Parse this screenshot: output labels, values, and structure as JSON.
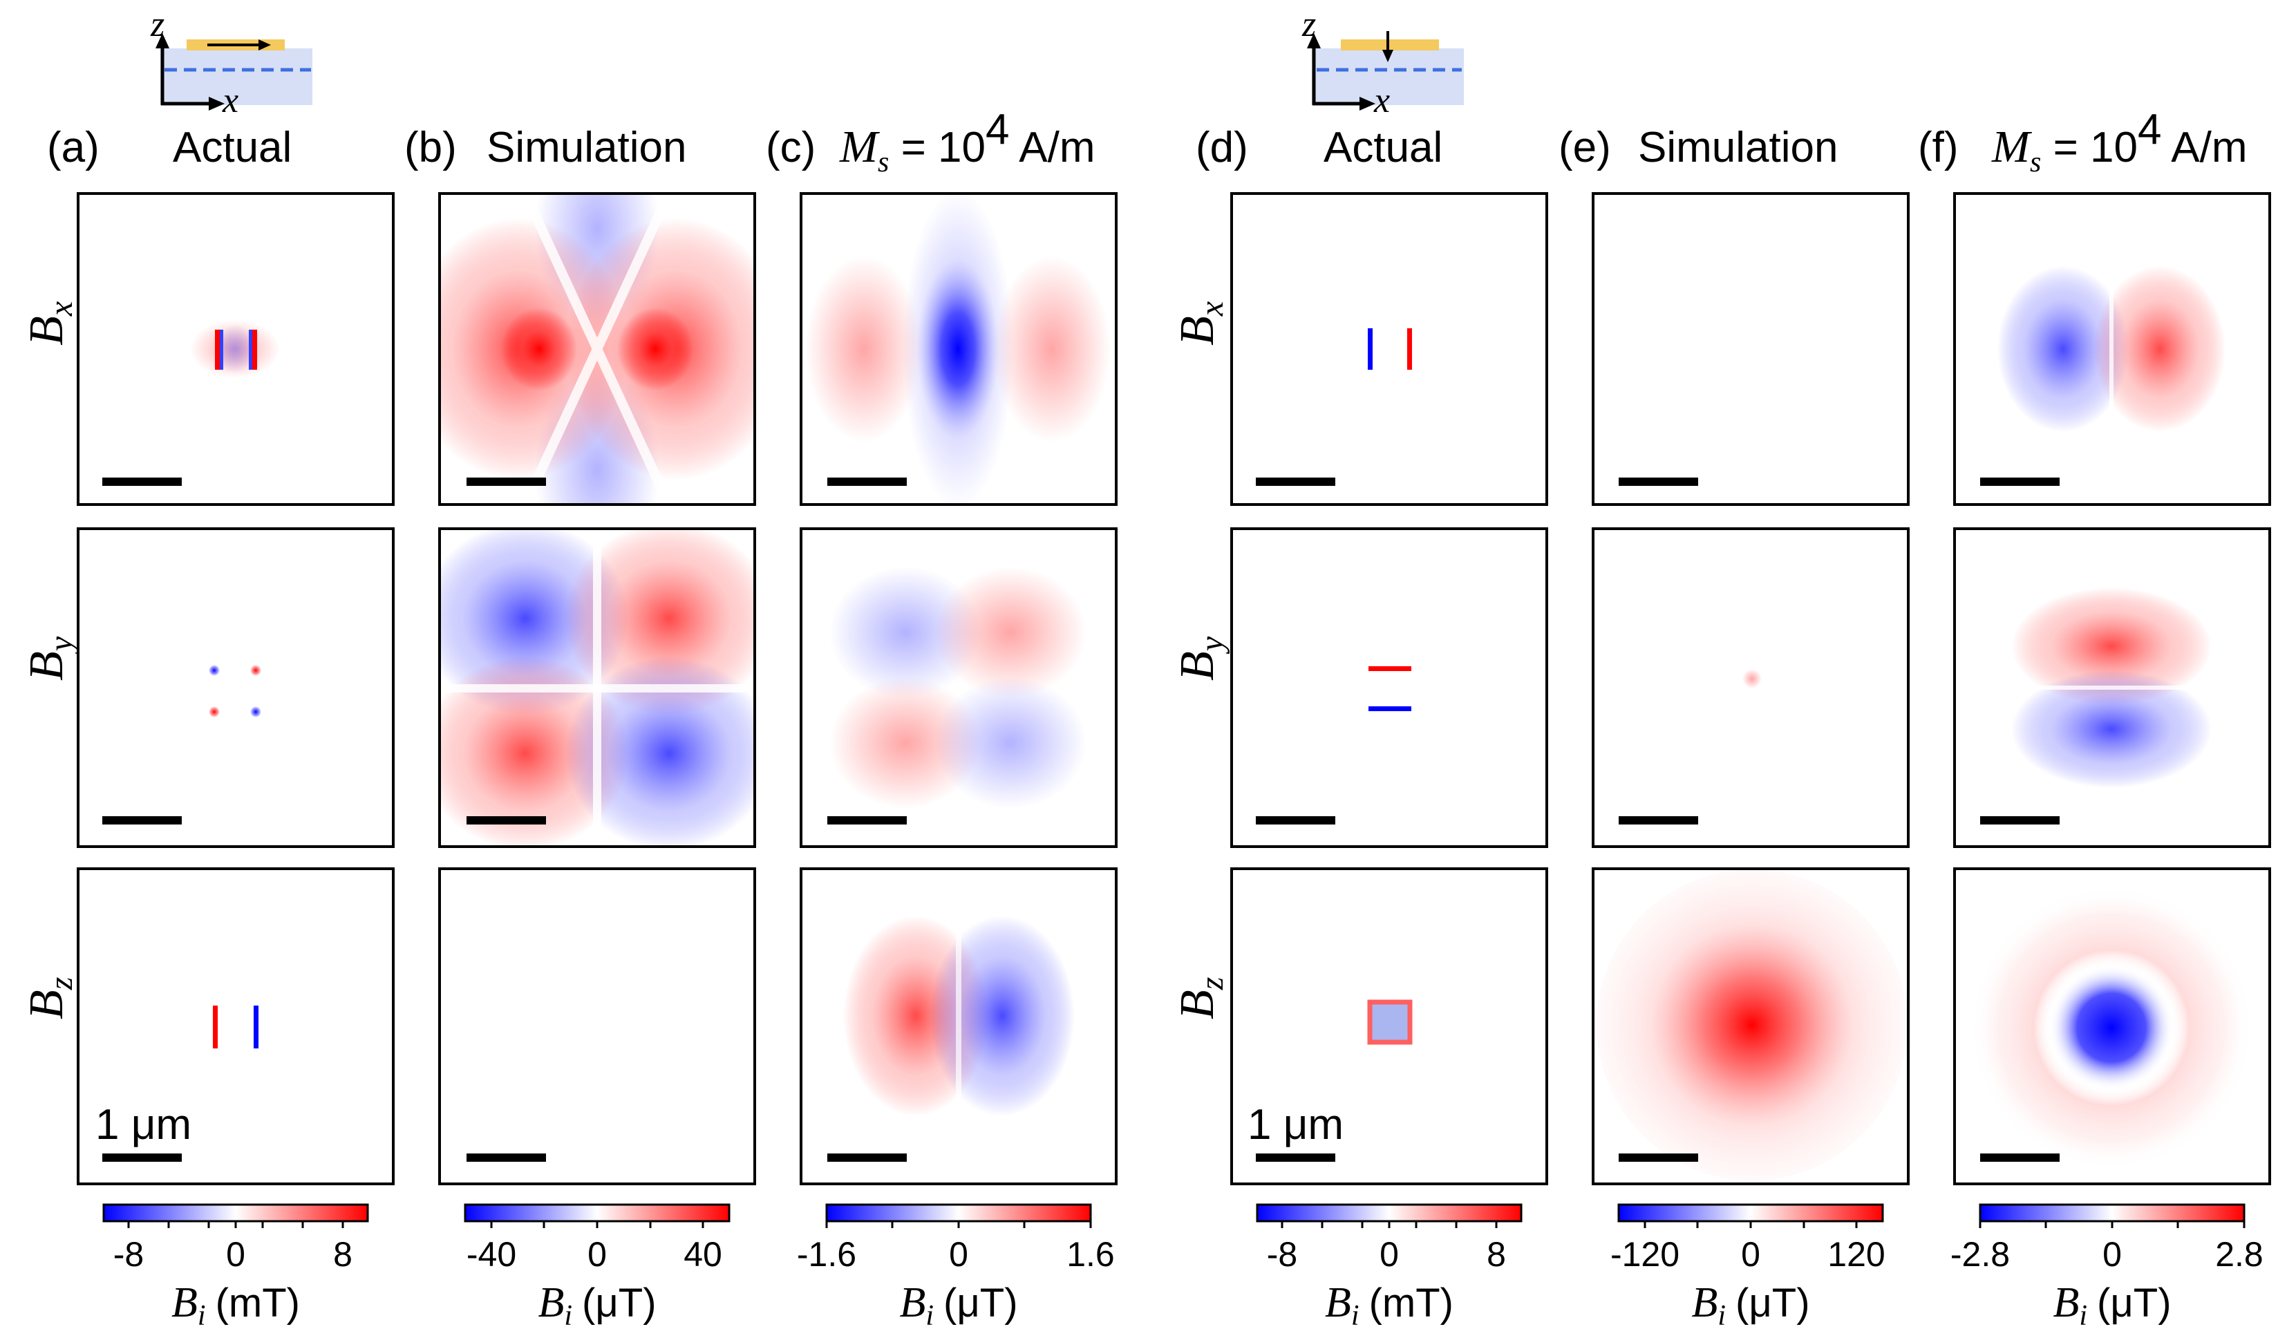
{
  "figure": {
    "colors": {
      "positive": "#ff0000",
      "negative": "#0000ff",
      "zero": "#ffffff",
      "substrate": "#d6dff5",
      "film": "#f4c95d",
      "dashed": "#3f6fe0"
    },
    "left_group": {
      "inset": {
        "z_label": "z",
        "x_label": "x",
        "magnetization": "in-plane"
      },
      "columns": [
        {
          "tag": "(a)",
          "title": "Actual",
          "colorbar": {
            "ticks": [
              "-8",
              "0",
              "8"
            ],
            "unit_prefix": "B",
            "unit_sub": "i",
            "unit": "(mT)",
            "range": [
              -10,
              10
            ]
          },
          "scale_label": "1 μm"
        },
        {
          "tag": "(b)",
          "title": "Simulation",
          "colorbar": {
            "ticks": [
              "-40",
              "0",
              "40"
            ],
            "unit_prefix": "B",
            "unit_sub": "i",
            "unit": "(μT)",
            "range": [
              -50,
              50
            ]
          }
        },
        {
          "tag": "(c)",
          "title_var": "M",
          "title_sub": "s",
          "title_rest": " = 10",
          "title_sup": "4",
          "title_unit": " A/m",
          "colorbar": {
            "ticks": [
              "-1.6",
              "0",
              "1.6"
            ],
            "unit_prefix": "B",
            "unit_sub": "i",
            "unit": "(μT)",
            "range": [
              -1.6,
              1.6
            ]
          }
        }
      ]
    },
    "right_group": {
      "inset": {
        "z_label": "z",
        "x_label": "x",
        "magnetization": "out-of-plane"
      },
      "columns": [
        {
          "tag": "(d)",
          "title": "Actual",
          "colorbar": {
            "ticks": [
              "-8",
              "0",
              "8"
            ],
            "unit_prefix": "B",
            "unit_sub": "i",
            "unit": "(mT)",
            "range": [
              -10,
              10
            ]
          },
          "scale_label": "1 μm"
        },
        {
          "tag": "(e)",
          "title": "Simulation",
          "colorbar": {
            "ticks": [
              "-120",
              "0",
              "120"
            ],
            "unit_prefix": "B",
            "unit_sub": "i",
            "unit": "(μT)",
            "range": [
              -150,
              150
            ]
          }
        },
        {
          "tag": "(f)",
          "title_var": "M",
          "title_sub": "s",
          "title_rest": " = 10",
          "title_sup": "4",
          "title_unit": " A/m",
          "colorbar": {
            "ticks": [
              "-2.8",
              "0",
              "2.8"
            ],
            "unit_prefix": "B",
            "unit_sub": "i",
            "unit": "(μT)",
            "range": [
              -2.8,
              2.8
            ]
          }
        }
      ]
    },
    "row_labels": [
      {
        "var": "B",
        "sub": "x"
      },
      {
        "var": "B",
        "sub": "y"
      },
      {
        "var": "B",
        "sub": "z"
      }
    ]
  }
}
